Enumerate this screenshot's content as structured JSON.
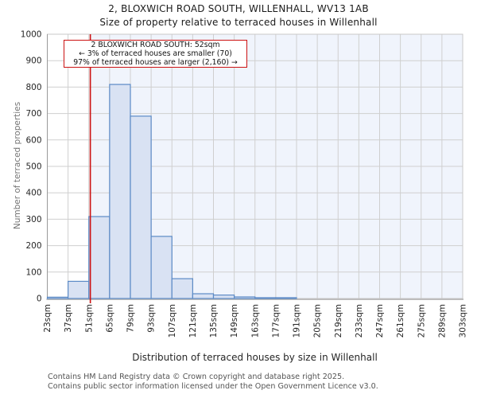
{
  "title": "2, BLOXWICH ROAD SOUTH, WILLENHALL, WV13 1AB",
  "subtitle": "Size of property relative to terraced houses in Willenhall",
  "annotation": {
    "line1": "2 BLOXWICH ROAD SOUTH: 52sqm",
    "line2": "← 3% of terraced houses are smaller (70)",
    "line3": "97% of terraced houses are larger (2,160) →"
  },
  "footer": {
    "line1": "Contains HM Land Registry data © Crown copyright and database right 2025.",
    "line2": "Contains public sector information licensed under the Open Government Licence v3.0."
  },
  "chart_data": {
    "type": "bar",
    "title": "2, BLOXWICH ROAD SOUTH, WILLENHALL, WV13 1AB",
    "subtitle": "Size of property relative to terraced houses in Willenhall",
    "xlabel": "Distribution of terraced houses by size in Willenhall",
    "ylabel": "Number of terraced properties",
    "bin_start_sqm": 23,
    "bin_width_sqm": 14,
    "categories": [
      "23sqm",
      "37sqm",
      "51sqm",
      "65sqm",
      "79sqm",
      "93sqm",
      "107sqm",
      "121sqm",
      "135sqm",
      "149sqm",
      "163sqm",
      "177sqm",
      "191sqm",
      "205sqm",
      "219sqm",
      "233sqm",
      "247sqm",
      "261sqm",
      "275sqm",
      "289sqm",
      "303sqm"
    ],
    "values": [
      5,
      65,
      310,
      810,
      690,
      235,
      75,
      18,
      13,
      6,
      3,
      3,
      0,
      0,
      0,
      0,
      0,
      0,
      0,
      0
    ],
    "ylim": [
      0,
      1000
    ],
    "yticks": [
      0,
      100,
      200,
      300,
      400,
      500,
      600,
      700,
      800,
      900,
      1000
    ],
    "grid": true,
    "marker_value_sqm": 52,
    "shade_from_sqm": 52,
    "colors": {
      "bar_fill": "#d9e2f3",
      "bar_edge": "#5b8ac6",
      "marker_line": "#cc1111",
      "shade_region": "#f0f4fc",
      "grid_line": "#cfcfcf",
      "plot_border": "#c8c8c8",
      "bottom_spine": "#bdbdbd",
      "left_spine": "#9a9a9a"
    }
  }
}
